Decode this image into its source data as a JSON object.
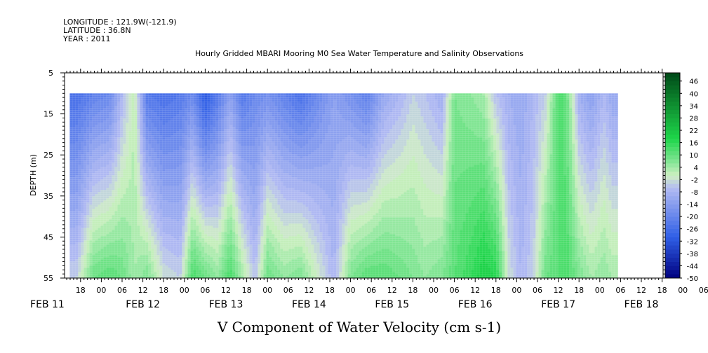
{
  "header": {
    "longitude": "LONGITUDE : 121.9W(-121.9)",
    "latitude": "LATITUDE : 36.8N",
    "year": "YEAR : 2011"
  },
  "chart_data": {
    "type": "heatmap",
    "title": "Hourly Gridded MBARI Mooring M0 Sea Water Temperature and Salinity Observations",
    "xlabel": "V Component of Water Velocity (cm s-1)",
    "ylabel": "DEPTH (m)",
    "ylim": [
      5,
      55
    ],
    "y_inverted": true,
    "y_ticks": [
      5,
      15,
      25,
      35,
      45,
      55
    ],
    "data_depth_range": [
      10,
      55
    ],
    "x_hour_ticks": [
      "18",
      "00",
      "06",
      "12",
      "18",
      "00",
      "06",
      "12",
      "18",
      "00",
      "06",
      "12",
      "18",
      "00",
      "06",
      "12",
      "18",
      "00",
      "06",
      "12",
      "18",
      "00",
      "06",
      "12",
      "18",
      "00",
      "06",
      "12",
      "18",
      "00",
      "06",
      "12"
    ],
    "x_date_labels": [
      "FEB 11",
      "FEB 12",
      "FEB 13",
      "FEB 14",
      "FEB 15",
      "FEB 16",
      "FEB 17",
      "FEB 18"
    ],
    "colorbar": {
      "range": [
        -50,
        50
      ],
      "step": 2,
      "labels": [
        "46",
        "40",
        "34",
        "28",
        "22",
        "16",
        "10",
        "4",
        "-2",
        "-8",
        "-14",
        "-20",
        "-26",
        "-32",
        "-38",
        "-44",
        "-50"
      ],
      "colors": {
        "neg_strong": "#00007f",
        "neg_mid": "#2f5fe6",
        "neg_light": "#b4bcf2",
        "zero": "#cfefc2",
        "pos_light": "#8ae69a",
        "pos_mid": "#1ed64a",
        "pos_strong": "#004a18"
      }
    },
    "value_profiles": [
      {
        "day": 11.7,
        "top": -26,
        "bottom": -4
      },
      {
        "day": 11.9,
        "top": -22,
        "bottom": 10
      },
      {
        "day": 12.1,
        "top": -20,
        "bottom": 12
      },
      {
        "day": 12.25,
        "top": -8,
        "bottom": 10
      },
      {
        "day": 12.4,
        "top": 2,
        "bottom": 4
      },
      {
        "day": 12.55,
        "top": -24,
        "bottom": 8
      },
      {
        "day": 12.75,
        "top": -26,
        "bottom": -2
      },
      {
        "day": 12.95,
        "top": -24,
        "bottom": -4
      },
      {
        "day": 13.1,
        "top": -20,
        "bottom": 14
      },
      {
        "day": 13.25,
        "top": -32,
        "bottom": 10
      },
      {
        "day": 13.4,
        "top": -24,
        "bottom": 6
      },
      {
        "day": 13.55,
        "top": -14,
        "bottom": 14
      },
      {
        "day": 13.7,
        "top": -24,
        "bottom": 4
      },
      {
        "day": 13.85,
        "top": -20,
        "bottom": -6
      },
      {
        "day": 14.0,
        "top": -18,
        "bottom": 10
      },
      {
        "day": 14.2,
        "top": -22,
        "bottom": 6
      },
      {
        "day": 14.4,
        "top": -26,
        "bottom": 8
      },
      {
        "day": 14.6,
        "top": -20,
        "bottom": 0
      },
      {
        "day": 14.8,
        "top": -14,
        "bottom": -8
      },
      {
        "day": 15.0,
        "top": -18,
        "bottom": 8
      },
      {
        "day": 15.2,
        "top": -22,
        "bottom": 12
      },
      {
        "day": 15.4,
        "top": -12,
        "bottom": 12
      },
      {
        "day": 15.6,
        "top": -8,
        "bottom": 10
      },
      {
        "day": 15.75,
        "top": -4,
        "bottom": 8
      },
      {
        "day": 15.9,
        "top": -6,
        "bottom": 6
      },
      {
        "day": 16.1,
        "top": -10,
        "bottom": 8
      },
      {
        "day": 16.25,
        "top": 8,
        "bottom": 12
      },
      {
        "day": 16.45,
        "top": 6,
        "bottom": 16
      },
      {
        "day": 16.6,
        "top": 4,
        "bottom": 20
      },
      {
        "day": 16.75,
        "top": -6,
        "bottom": 18
      },
      {
        "day": 16.9,
        "top": -10,
        "bottom": -2
      },
      {
        "day": 17.05,
        "top": -12,
        "bottom": -8
      },
      {
        "day": 17.2,
        "top": -8,
        "bottom": -4
      },
      {
        "day": 17.35,
        "top": -4,
        "bottom": 10
      },
      {
        "day": 17.5,
        "top": 14,
        "bottom": 12
      },
      {
        "day": 17.6,
        "top": 10,
        "bottom": 14
      },
      {
        "day": 17.75,
        "top": -10,
        "bottom": 8
      },
      {
        "day": 17.9,
        "top": -14,
        "bottom": 4
      },
      {
        "day": 18.05,
        "top": -8,
        "bottom": 6
      },
      {
        "day": 18.15,
        "top": -12,
        "bottom": 4
      }
    ]
  }
}
